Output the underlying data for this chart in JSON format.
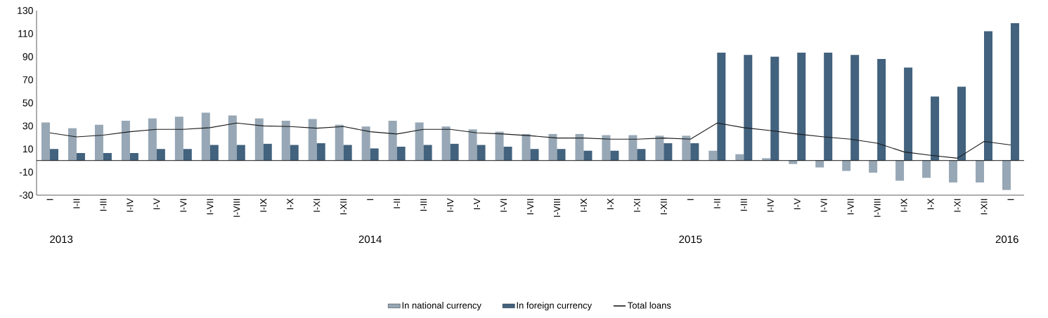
{
  "chart_data": {
    "type": "bar",
    "categories": [
      "I",
      "I-II",
      "I-III",
      "I-IV",
      "I-V",
      "I-VI",
      "I-VII",
      "I-VIII",
      "I-IX",
      "I-X",
      "I-XI",
      "I-XII",
      "I",
      "I-II",
      "I-III",
      "I-IV",
      "I-V",
      "I-VI",
      "I-VII",
      "I-VIII",
      "I-IX",
      "I-X",
      "I-XI",
      "I-XII",
      "I",
      "I-II",
      "I-III",
      "I-IV",
      "I-V",
      "I-VI",
      "I-VII",
      "I-VIII",
      "I-IX",
      "I-X",
      "I-XI",
      "I-XII",
      "I"
    ],
    "series": [
      {
        "name": "In national currency",
        "color": "#97a7b5",
        "values": [
          33,
          28,
          31,
          34.5,
          36.5,
          38,
          41.5,
          39,
          36.5,
          34.5,
          36,
          31,
          29.5,
          34.5,
          33,
          29.5,
          27,
          25,
          23,
          23,
          23,
          22,
          22,
          21.5,
          21.5,
          8.5,
          5.5,
          2,
          -3,
          -6,
          -9,
          -10.5,
          -17.5,
          -15,
          -19,
          -19,
          -25.5
        ]
      },
      {
        "name": "In foreign currency",
        "color": "#42627e",
        "values": [
          10,
          6.5,
          6.5,
          6.5,
          10,
          10,
          13.5,
          13.5,
          14.5,
          13.5,
          15,
          13.5,
          10.5,
          12,
          13.5,
          14.5,
          13.5,
          12,
          10,
          10,
          8.5,
          8.5,
          10,
          15,
          15,
          93.5,
          91.5,
          90,
          93.5,
          93.5,
          91.5,
          88,
          80.5,
          55.5,
          64,
          112,
          119
        ]
      },
      {
        "name": "Total loans",
        "type": "line",
        "color": "#1a1a1a",
        "values": [
          24,
          20.5,
          22,
          25,
          27,
          27,
          28.5,
          32.5,
          30,
          29.5,
          28,
          29.5,
          25,
          23,
          27,
          27,
          24,
          23,
          21.5,
          19.5,
          19.5,
          18.5,
          18.5,
          19.5,
          18.5,
          32.5,
          28.5,
          26,
          23,
          20.5,
          18.5,
          15,
          7.5,
          4.5,
          2,
          16.5,
          13.5
        ]
      }
    ],
    "ylim": [
      -30,
      130
    ],
    "yticks": [
      -30,
      -10,
      10,
      30,
      50,
      70,
      90,
      110,
      130
    ],
    "legend": "bottom",
    "annotations": [
      "2013",
      "2014",
      "2015",
      "2016"
    ]
  }
}
